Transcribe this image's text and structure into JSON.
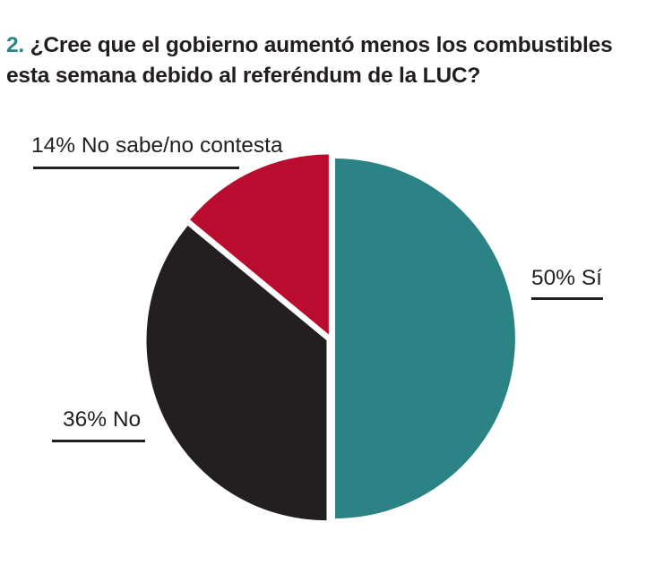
{
  "title": {
    "number": "2.",
    "line1": "¿Cree que el gobierno aumentó menos los combustibles",
    "line2": "esta semana debido al referéndum de la LUC?"
  },
  "chart_data": {
    "type": "pie",
    "title": "2. ¿Cree que el gobierno aumentó menos los combustibles esta semana debido al referéndum de la LUC?",
    "slices": [
      {
        "label": "50% Sí",
        "category": "Sí",
        "value": 50,
        "color": "#2b8385"
      },
      {
        "label": "36% No",
        "category": "No",
        "value": 36,
        "color": "#231f20"
      },
      {
        "label": "14% No sabe/no contesta",
        "category": "No sabe/no contesta",
        "value": 14,
        "color": "#ba0c2f"
      }
    ],
    "start": "12 o'clock",
    "direction": "clockwise",
    "legend": "none"
  }
}
